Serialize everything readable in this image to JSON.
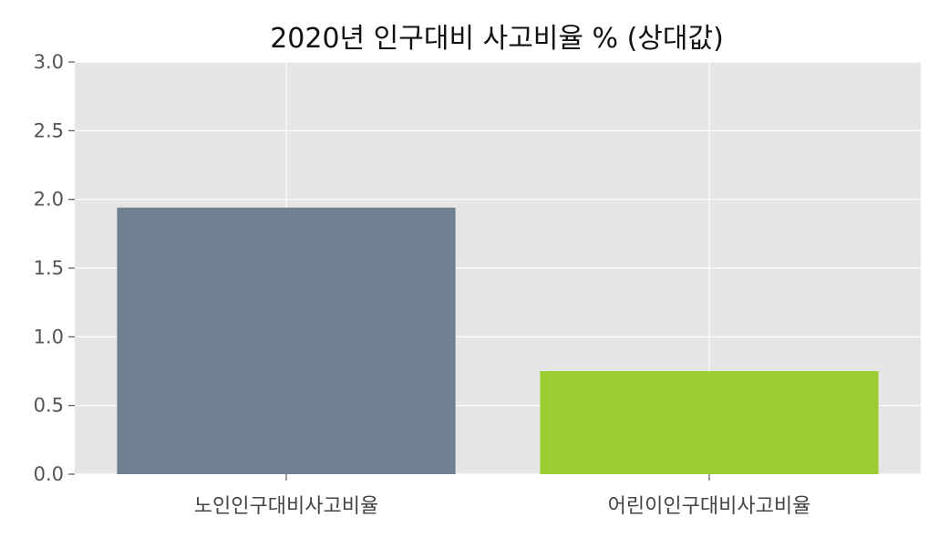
{
  "chart_data": {
    "type": "bar",
    "title": "2020년 인구대비 사고비율 % (상대값)",
    "xlabel": "",
    "ylabel": "",
    "categories": [
      "노인인구대비사고비율",
      "어린이인구대비사고비율"
    ],
    "values": [
      1.94,
      0.75
    ],
    "bar_colors": [
      "#708090",
      "#9ACD32"
    ],
    "ylim": [
      0,
      3.0
    ],
    "yticks": [
      "0.0",
      "0.5",
      "1.0",
      "1.5",
      "2.0",
      "2.5",
      "3.0"
    ],
    "grid": true,
    "background": "#E5E5E5",
    "grid_color": "#FFFFFF"
  }
}
